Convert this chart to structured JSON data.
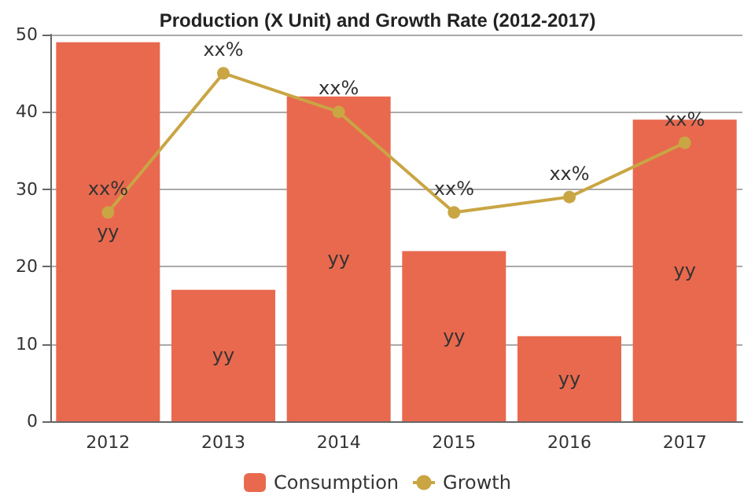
{
  "chart_data": {
    "type": "bar",
    "title": "Production (X Unit) and Growth Rate (2012-2017)",
    "categories": [
      "2012",
      "2013",
      "2014",
      "2015",
      "2016",
      "2017"
    ],
    "series": [
      {
        "name": "Consumption",
        "color": "#e8694e",
        "values": [
          49,
          17,
          42,
          22,
          11,
          39
        ],
        "value_labels": [
          "yy",
          "yy",
          "yy",
          "yy",
          "yy",
          "yy"
        ]
      },
      {
        "name": "Growth",
        "type": "line",
        "color": "#c9a544",
        "values": [
          27,
          45,
          40,
          27,
          29,
          36
        ],
        "value_labels": [
          "xx%",
          "xx%",
          "xx%",
          "xx%",
          "xx%",
          "xx%"
        ]
      }
    ],
    "ylim": [
      0,
      50
    ],
    "yticks": [
      0,
      10,
      20,
      30,
      40,
      50
    ],
    "grid": "y",
    "legend": "bottom",
    "marker": "circle"
  }
}
